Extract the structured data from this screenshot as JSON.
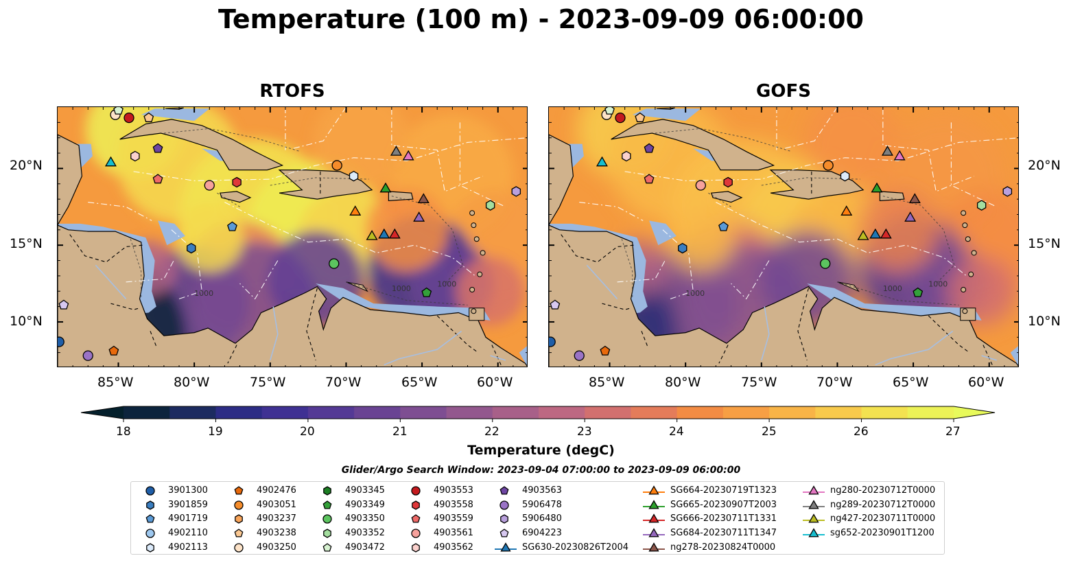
{
  "title": "Temperature (100 m) - 2023-09-09 06:00:00",
  "panels": [
    {
      "title": "RTOFS",
      "variant": "rtofs"
    },
    {
      "title": "GOFS",
      "variant": "gofs"
    }
  ],
  "lat_labels": [
    "20°N",
    "15°N",
    "10°N"
  ],
  "lon_labels": [
    "85°W",
    "80°W",
    "75°W",
    "70°W",
    "65°W",
    "60°W"
  ],
  "map_extent": {
    "lon": [
      -89,
      -58
    ],
    "lat": [
      7,
      24
    ]
  },
  "colorbar": {
    "title": "Temperature (degC)",
    "ticks": [
      "18",
      "19",
      "20",
      "21",
      "22",
      "23",
      "24",
      "25",
      "26",
      "27"
    ],
    "range": [
      18,
      27
    ],
    "extend": "both",
    "colormap": "thermal",
    "under_color": "#04202c",
    "over_color": "#e8fa5b"
  },
  "contour_label": "1000",
  "search_window": "Glider/Argo Search Window: 2023-09-04 07:00:00 to 2023-09-09 06:00:00",
  "legend": [
    {
      "id": "3901300",
      "marker": "circle",
      "color": "#1f5ea8"
    },
    {
      "id": "3901859",
      "marker": "hexagon",
      "color": "#3a7ec0"
    },
    {
      "id": "4901719",
      "marker": "pentagon",
      "color": "#5a9ad6"
    },
    {
      "id": "4902110",
      "marker": "circle",
      "color": "#9ec8ef"
    },
    {
      "id": "4902113",
      "marker": "hexagon",
      "color": "#dcebfb"
    },
    {
      "id": "4902476",
      "marker": "pentagon",
      "color": "#e8690b"
    },
    {
      "id": "4903051",
      "marker": "circle",
      "color": "#f58c2b"
    },
    {
      "id": "4903237",
      "marker": "hexagon",
      "color": "#f9a55a"
    },
    {
      "id": "4903238",
      "marker": "pentagon",
      "color": "#fbc892"
    },
    {
      "id": "4903250",
      "marker": "circle",
      "color": "#fde3c8"
    },
    {
      "id": "4903345",
      "marker": "hexagon",
      "color": "#1d7f24"
    },
    {
      "id": "4903349",
      "marker": "pentagon",
      "color": "#34a13a"
    },
    {
      "id": "4903350",
      "marker": "circle",
      "color": "#5cc45f"
    },
    {
      "id": "4903352",
      "marker": "hexagon",
      "color": "#a4de9f"
    },
    {
      "id": "4903472",
      "marker": "pentagon",
      "color": "#d8f3d2"
    },
    {
      "id": "4903553",
      "marker": "circle",
      "color": "#c41a1e"
    },
    {
      "id": "4903558",
      "marker": "hexagon",
      "color": "#e0383a"
    },
    {
      "id": "4903559",
      "marker": "pentagon",
      "color": "#ef6a68"
    },
    {
      "id": "4903561",
      "marker": "circle",
      "color": "#f6a19c"
    },
    {
      "id": "4903562",
      "marker": "hexagon",
      "color": "#fbd1cd"
    },
    {
      "id": "4903563",
      "marker": "pentagon",
      "color": "#6e45a3"
    },
    {
      "id": "5906478",
      "marker": "circle",
      "color": "#9a73c6"
    },
    {
      "id": "5906480",
      "marker": "hexagon",
      "color": "#b9a0dd"
    },
    {
      "id": "6904223",
      "marker": "pentagon",
      "color": "#d7c8f0"
    },
    {
      "id": "SG630-20230826T2004",
      "marker": "triangle-line",
      "color": "#1f77b4"
    },
    {
      "id": "SG664-20230719T1323",
      "marker": "triangle-line",
      "color": "#ff7f0e"
    },
    {
      "id": "SG665-20230907T2003",
      "marker": "triangle-line",
      "color": "#2ca02c"
    },
    {
      "id": "SG666-20230711T1331",
      "marker": "triangle-line",
      "color": "#d62728"
    },
    {
      "id": "SG684-20230711T1347",
      "marker": "triangle-line",
      "color": "#9467bd"
    },
    {
      "id": "ng278-20230824T0000",
      "marker": "triangle-line",
      "color": "#8c564b"
    },
    {
      "id": "ng280-20230712T0000",
      "marker": "triangle-line",
      "color": "#e377c2"
    },
    {
      "id": "ng289-20230712T0000",
      "marker": "triangle-line",
      "color": "#7f7f7f"
    },
    {
      "id": "ng427-20230711T0000",
      "marker": "triangle-line",
      "color": "#bcbd22"
    },
    {
      "id": "sg652-20230901T1200",
      "marker": "triangle-line",
      "color": "#17becf"
    }
  ],
  "observations": [
    {
      "id": "3901300",
      "lon": -88.9,
      "lat": 8.7
    },
    {
      "id": "5906478",
      "lon": -87.0,
      "lat": 7.8
    },
    {
      "id": "4902476",
      "lon": -85.3,
      "lat": 8.1
    },
    {
      "id": "6904223",
      "lon": -88.6,
      "lat": 11.1
    },
    {
      "id": "4903250",
      "lon": -85.2,
      "lat": 23.5
    },
    {
      "id": "4903472",
      "lon": -85.0,
      "lat": 23.8
    },
    {
      "id": "4903553",
      "lon": -84.3,
      "lat": 23.3
    },
    {
      "id": "4903238",
      "lon": -83.0,
      "lat": 23.3
    },
    {
      "id": "4903562",
      "lon": -83.9,
      "lat": 20.8
    },
    {
      "id": "4903563",
      "lon": -82.4,
      "lat": 21.3
    },
    {
      "id": "4903559",
      "lon": -82.4,
      "lat": 19.3
    },
    {
      "id": "4903561",
      "lon": -79.0,
      "lat": 18.9
    },
    {
      "id": "4903558",
      "lon": -77.2,
      "lat": 19.1
    },
    {
      "id": "4901719",
      "lon": -77.5,
      "lat": 16.2
    },
    {
      "id": "3901859",
      "lon": -80.2,
      "lat": 14.8
    },
    {
      "id": "4903051",
      "lon": -70.6,
      "lat": 20.2
    },
    {
      "id": "4902113",
      "lon": -69.5,
      "lat": 19.5
    },
    {
      "id": "4903350",
      "lon": -70.8,
      "lat": 13.8
    },
    {
      "id": "4903349",
      "lon": -64.7,
      "lat": 11.9
    },
    {
      "id": "4903352",
      "lon": -60.5,
      "lat": 17.6
    },
    {
      "id": "5906480",
      "lon": -58.8,
      "lat": 18.5
    },
    {
      "id": "sg652-20230901T1200",
      "lon": -85.5,
      "lat": 20.4
    },
    {
      "id": "ng289-20230712T0000",
      "lon": -66.7,
      "lat": 21.1
    },
    {
      "id": "ng280-20230712T0000",
      "lon": -65.9,
      "lat": 20.8
    },
    {
      "id": "SG665-20230907T2003",
      "lon": -67.4,
      "lat": 18.7
    },
    {
      "id": "ng278-20230824T0000",
      "lon": -64.9,
      "lat": 18.0
    },
    {
      "id": "SG664-20230719T1323",
      "lon": -69.4,
      "lat": 17.2
    },
    {
      "id": "SG684-20230711T1347",
      "lon": -65.2,
      "lat": 16.8
    },
    {
      "id": "ng427-20230711T0000",
      "lon": -68.3,
      "lat": 15.6
    },
    {
      "id": "SG630-20230826T2004",
      "lon": -67.5,
      "lat": 15.7
    },
    {
      "id": "SG666-20230711T1331",
      "lon": -66.8,
      "lat": 15.7
    }
  ]
}
